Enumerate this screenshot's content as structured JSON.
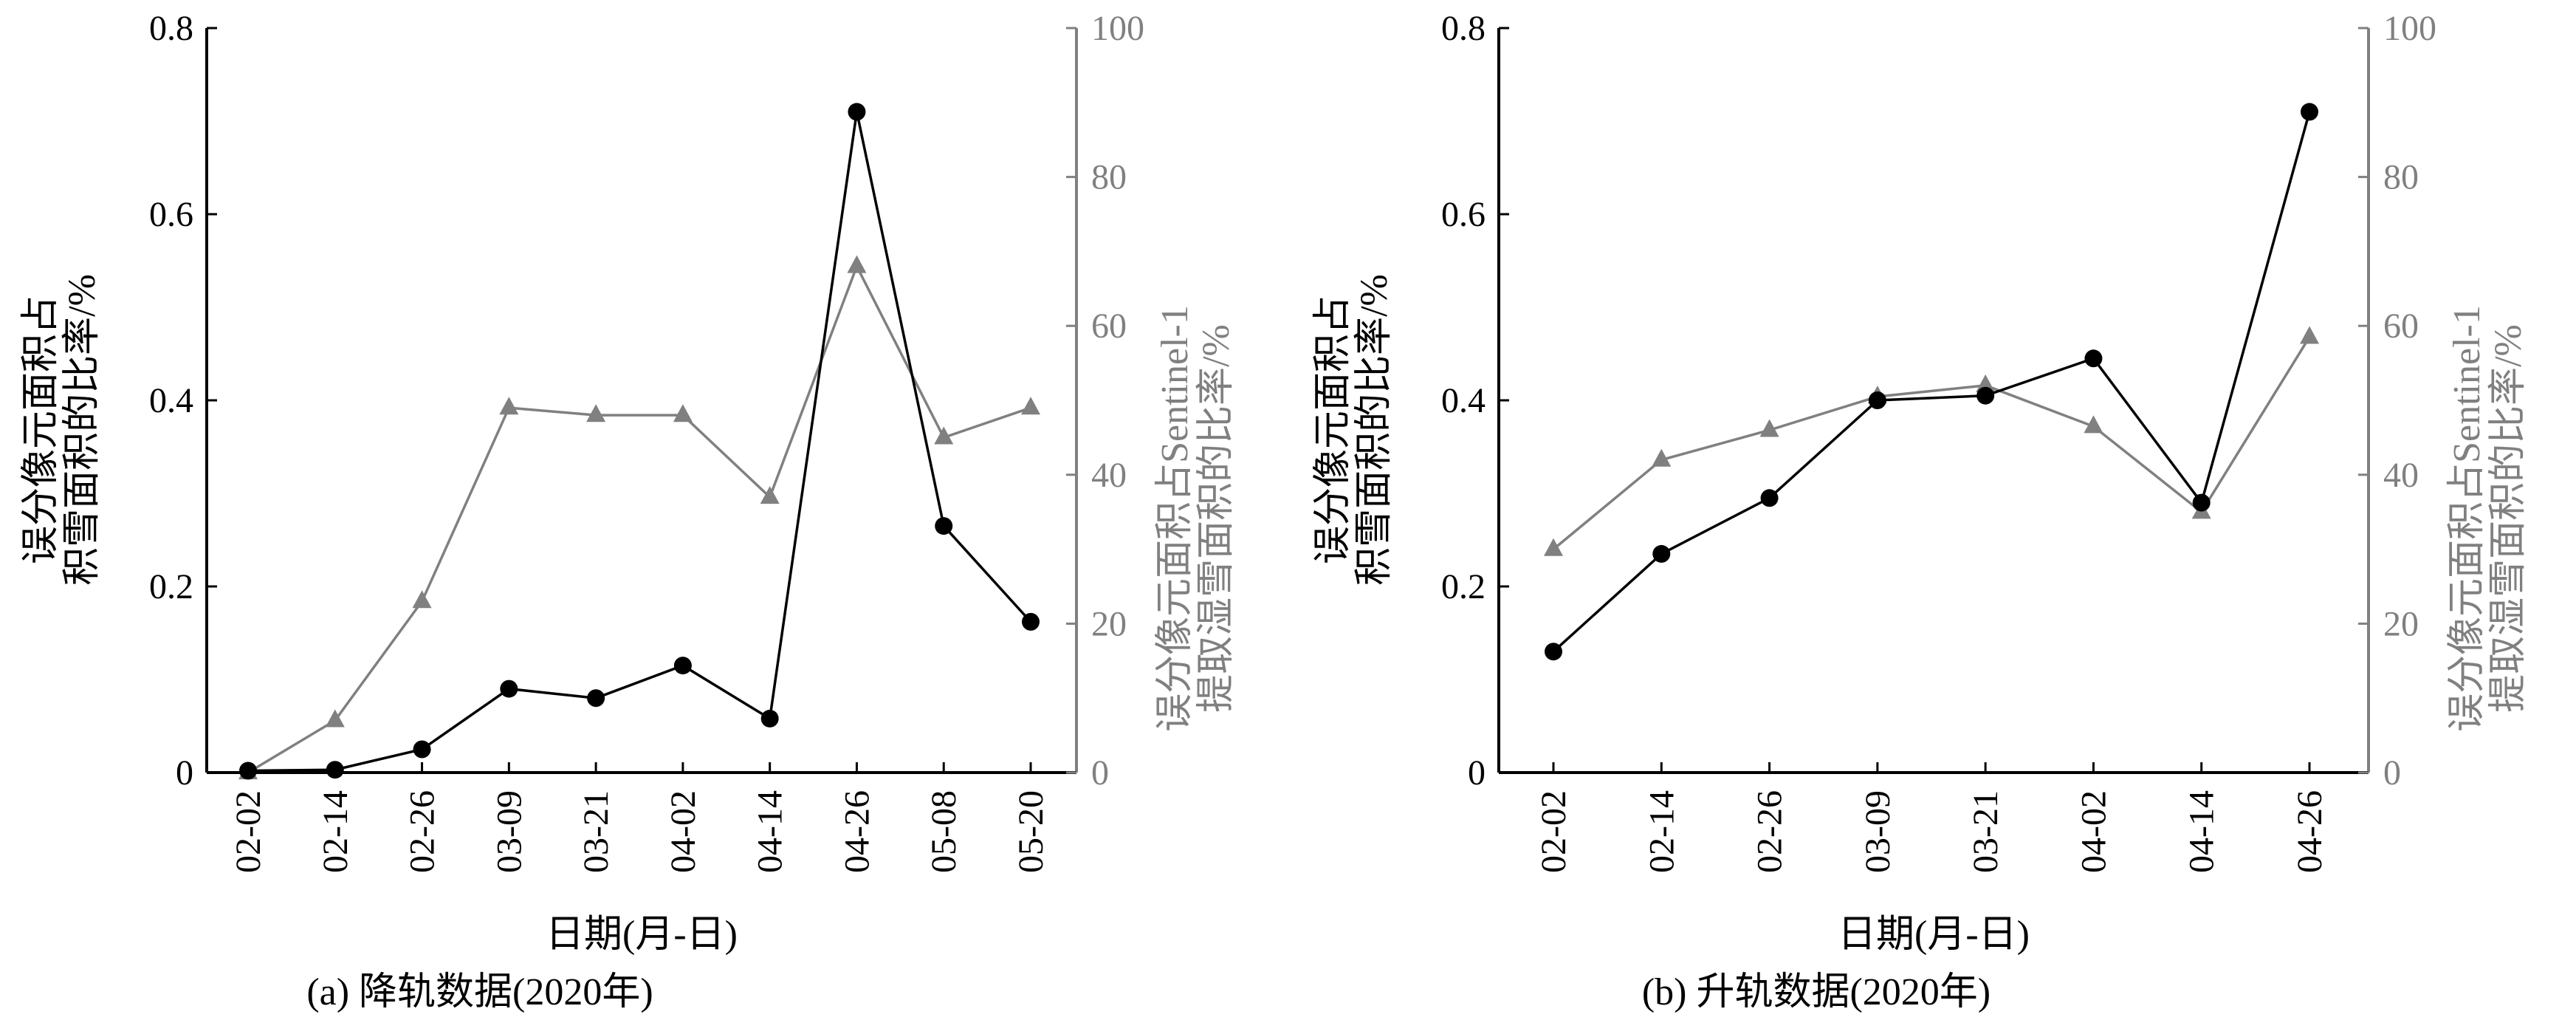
{
  "colors": {
    "left_axis": "#000000",
    "right_axis": "#808080",
    "series_ratio": "#000000",
    "series_share": "#808080"
  },
  "chart_data": [
    {
      "type": "line",
      "caption": "(a) 降轨数据(2020年)",
      "xlabel": "日期(月-日)",
      "ylabel_left": [
        "误分像元面积占",
        "积雪面积的比率/%"
      ],
      "ylabel_right": [
        "误分像元面积占Sentinel-1",
        "提取湿雪面积的比率/%"
      ],
      "categories": [
        "02-02",
        "02-14",
        "02-26",
        "03-09",
        "03-21",
        "04-02",
        "04-14",
        "04-26",
        "05-08",
        "05-20"
      ],
      "ylim_left": [
        0,
        0.8
      ],
      "yticks_left": [
        "0",
        "0.2",
        "0.4",
        "0.6",
        "0.8"
      ],
      "ylim_right": [
        0,
        100
      ],
      "yticks_right": [
        "0",
        "20",
        "40",
        "60",
        "80",
        "100"
      ],
      "grid": false,
      "series": [
        {
          "axis": "left",
          "marker": "circle",
          "values": [
            0.002,
            0.003,
            0.025,
            0.09,
            0.08,
            0.115,
            0.058,
            0.71,
            0.265,
            0.162
          ]
        },
        {
          "axis": "right",
          "marker": "triangle",
          "values": [
            0,
            7,
            23,
            49,
            48,
            48,
            37,
            68,
            45,
            49
          ]
        }
      ]
    },
    {
      "type": "line",
      "caption": "(b) 升轨数据(2020年)",
      "xlabel": "日期(月-日)",
      "ylabel_left": [
        "误分像元面积占",
        "积雪面积的比率/%"
      ],
      "ylabel_right": [
        "误分像元面积占Sentinel-1",
        "提取湿雪面积的比率/%"
      ],
      "categories": [
        "02-02",
        "02-14",
        "02-26",
        "03-09",
        "03-21",
        "04-02",
        "04-14",
        "04-26"
      ],
      "ylim_left": [
        0,
        0.8
      ],
      "yticks_left": [
        "0",
        "0.2",
        "0.4",
        "0.6",
        "0.8"
      ],
      "ylim_right": [
        0,
        100
      ],
      "yticks_right": [
        "0",
        "20",
        "40",
        "60",
        "80",
        "100"
      ],
      "grid": false,
      "series": [
        {
          "axis": "left",
          "marker": "circle",
          "values": [
            0.13,
            0.235,
            0.295,
            0.4,
            0.405,
            0.445,
            0.29,
            0.71
          ]
        },
        {
          "axis": "right",
          "marker": "triangle",
          "values": [
            30,
            42,
            46,
            50.5,
            52,
            46.5,
            35,
            58.5
          ]
        }
      ]
    }
  ]
}
